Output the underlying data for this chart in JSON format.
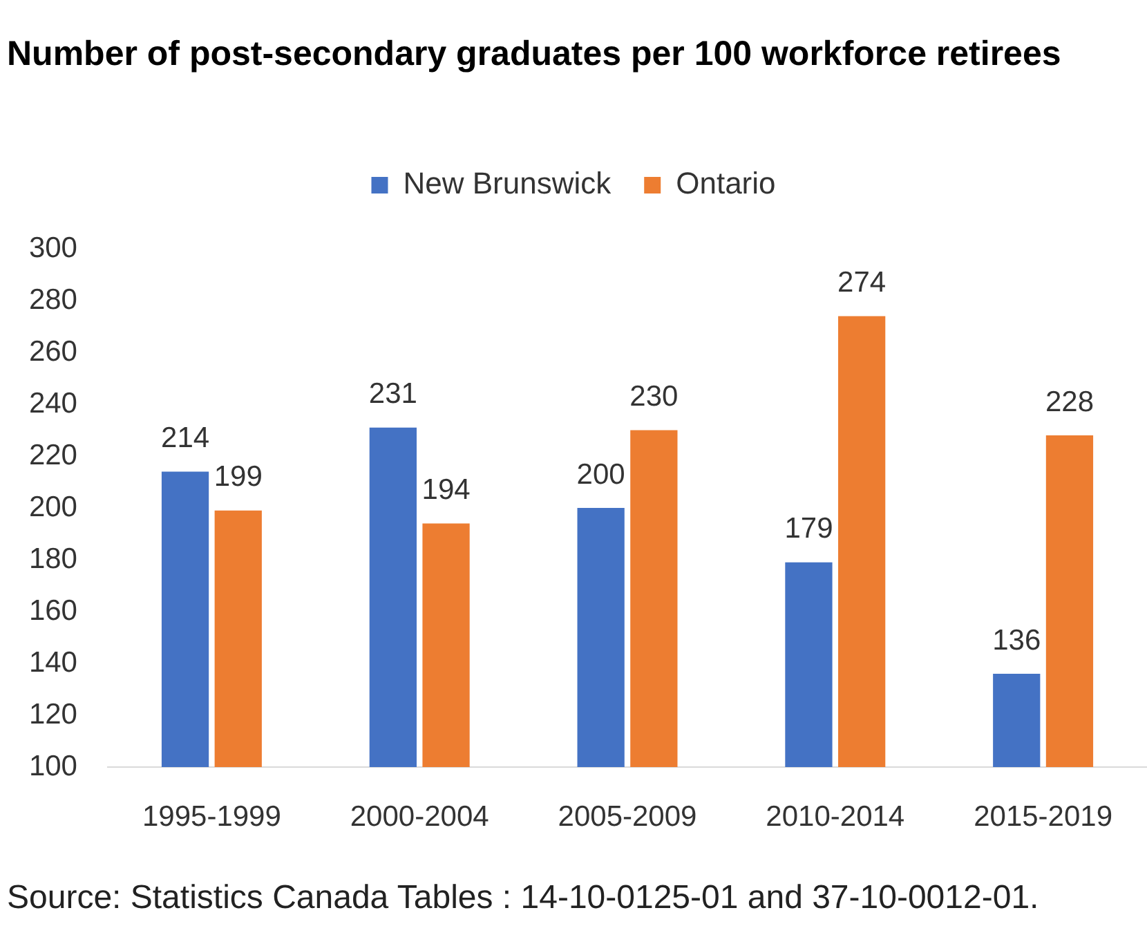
{
  "chart_data": {
    "type": "bar",
    "title": "Number of post-secondary graduates per 100 workforce retirees",
    "categories": [
      "1995-1999",
      "2000-2004",
      "2005-2009",
      "2010-2014",
      "2015-2019"
    ],
    "series": [
      {
        "name": "New Brunswick",
        "color": "#4472c4",
        "values": [
          214,
          231,
          200,
          179,
          136
        ]
      },
      {
        "name": "Ontario",
        "color": "#ed7d31",
        "values": [
          199,
          194,
          230,
          274,
          228
        ]
      }
    ],
    "ylim": [
      100,
      300
    ],
    "yticks": [
      100,
      120,
      140,
      160,
      180,
      200,
      220,
      240,
      260,
      280,
      300
    ],
    "grid": false,
    "legend": "top",
    "data_labels": true,
    "annotations": [
      "Source: Statistics Canada Tables : 14-10-0125-01 and 37-10-0012-01."
    ]
  }
}
